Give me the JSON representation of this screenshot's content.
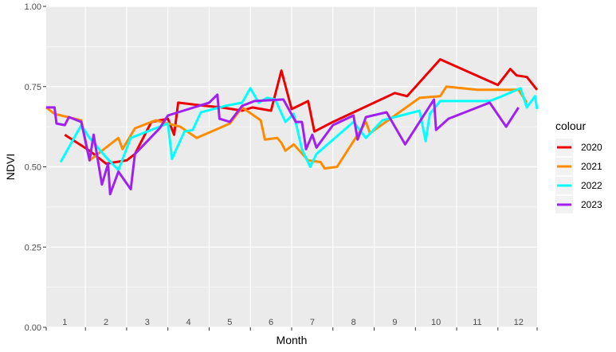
{
  "chart_data": {
    "type": "line",
    "title": "",
    "xlabel": "Month",
    "ylabel": "NDVI",
    "ylim": [
      0,
      1
    ],
    "xlim": [
      0.55,
      12.45
    ],
    "yticks": [
      0,
      0.25,
      0.5,
      0.75,
      1
    ],
    "ytick_labels": [
      "0.00",
      "0.25",
      "0.50",
      "0.75",
      "1.00"
    ],
    "month_labels": [
      "1",
      "2",
      "3",
      "4",
      "5",
      "6",
      "7",
      "8",
      "9",
      "10",
      "11",
      "12"
    ],
    "grid": true,
    "legend_position": "right",
    "legend_title": "colour",
    "series": [
      {
        "name": "2020",
        "color": "#ee0000",
        "points": [
          [
            1.0,
            0.6
          ],
          [
            1.6,
            0.55
          ],
          [
            2.0,
            0.51
          ],
          [
            2.5,
            0.52
          ],
          [
            2.7,
            0.54
          ],
          [
            3.1,
            0.64
          ],
          [
            3.5,
            0.65
          ],
          [
            3.65,
            0.6
          ],
          [
            3.75,
            0.7
          ],
          [
            4.4,
            0.69
          ],
          [
            4.8,
            0.685
          ],
          [
            5.3,
            0.675
          ],
          [
            5.55,
            0.685
          ],
          [
            6.0,
            0.675
          ],
          [
            6.25,
            0.8
          ],
          [
            6.5,
            0.68
          ],
          [
            6.9,
            0.705
          ],
          [
            7.05,
            0.61
          ],
          [
            7.5,
            0.64
          ],
          [
            9.0,
            0.73
          ],
          [
            9.3,
            0.72
          ],
          [
            10.1,
            0.835
          ],
          [
            11.5,
            0.755
          ],
          [
            11.8,
            0.805
          ],
          [
            11.95,
            0.785
          ],
          [
            12.2,
            0.78
          ],
          [
            12.45,
            0.74
          ]
        ]
      },
      {
        "name": "2021",
        "color": "#ff8c00",
        "points": [
          [
            0.55,
            0.685
          ],
          [
            0.75,
            0.665
          ],
          [
            1.4,
            0.645
          ],
          [
            1.6,
            0.52
          ],
          [
            2.3,
            0.59
          ],
          [
            2.4,
            0.555
          ],
          [
            2.7,
            0.62
          ],
          [
            3.2,
            0.645
          ],
          [
            3.8,
            0.625
          ],
          [
            4.2,
            0.59
          ],
          [
            5.0,
            0.635
          ],
          [
            5.3,
            0.685
          ],
          [
            5.75,
            0.645
          ],
          [
            5.85,
            0.585
          ],
          [
            6.15,
            0.59
          ],
          [
            6.25,
            0.575
          ],
          [
            6.35,
            0.55
          ],
          [
            6.55,
            0.57
          ],
          [
            6.9,
            0.52
          ],
          [
            7.2,
            0.515
          ],
          [
            7.3,
            0.495
          ],
          [
            7.6,
            0.5
          ],
          [
            8.3,
            0.64
          ],
          [
            8.4,
            0.605
          ],
          [
            9.6,
            0.715
          ],
          [
            10.1,
            0.72
          ],
          [
            10.25,
            0.75
          ],
          [
            11.0,
            0.74
          ],
          [
            11.6,
            0.74
          ],
          [
            12.0,
            0.74
          ],
          [
            12.2,
            0.7
          ]
        ]
      },
      {
        "name": "2022",
        "color": "#00ffff",
        "points": [
          [
            0.9,
            0.515
          ],
          [
            1.4,
            0.63
          ],
          [
            1.6,
            0.59
          ],
          [
            2.0,
            0.53
          ],
          [
            2.3,
            0.49
          ],
          [
            2.6,
            0.59
          ],
          [
            3.5,
            0.635
          ],
          [
            3.6,
            0.525
          ],
          [
            3.9,
            0.61
          ],
          [
            4.1,
            0.615
          ],
          [
            4.3,
            0.67
          ],
          [
            4.9,
            0.69
          ],
          [
            5.3,
            0.7
          ],
          [
            5.5,
            0.745
          ],
          [
            5.7,
            0.7
          ],
          [
            5.9,
            0.715
          ],
          [
            6.1,
            0.71
          ],
          [
            6.35,
            0.64
          ],
          [
            6.55,
            0.665
          ],
          [
            6.75,
            0.555
          ],
          [
            6.95,
            0.5
          ],
          [
            7.1,
            0.54
          ],
          [
            8.0,
            0.64
          ],
          [
            8.3,
            0.59
          ],
          [
            8.7,
            0.645
          ],
          [
            9.6,
            0.675
          ],
          [
            9.75,
            0.58
          ],
          [
            9.85,
            0.665
          ],
          [
            10.1,
            0.705
          ],
          [
            11.3,
            0.705
          ],
          [
            11.6,
            0.72
          ],
          [
            12.05,
            0.745
          ],
          [
            12.2,
            0.685
          ],
          [
            12.4,
            0.72
          ],
          [
            12.45,
            0.68
          ]
        ]
      },
      {
        "name": "2023",
        "color": "#a020f0",
        "points": [
          [
            0.55,
            0.685
          ],
          [
            0.75,
            0.685
          ],
          [
            0.8,
            0.635
          ],
          [
            1.0,
            0.63
          ],
          [
            1.1,
            0.655
          ],
          [
            1.4,
            0.64
          ],
          [
            1.6,
            0.52
          ],
          [
            1.7,
            0.6
          ],
          [
            1.9,
            0.445
          ],
          [
            2.05,
            0.51
          ],
          [
            2.1,
            0.415
          ],
          [
            2.3,
            0.485
          ],
          [
            2.6,
            0.43
          ],
          [
            2.7,
            0.54
          ],
          [
            3.3,
            0.62
          ],
          [
            3.5,
            0.66
          ],
          [
            4.0,
            0.68
          ],
          [
            4.5,
            0.7
          ],
          [
            4.7,
            0.725
          ],
          [
            4.75,
            0.65
          ],
          [
            5.0,
            0.64
          ],
          [
            5.3,
            0.69
          ],
          [
            5.6,
            0.705
          ],
          [
            6.3,
            0.71
          ],
          [
            6.6,
            0.64
          ],
          [
            6.75,
            0.64
          ],
          [
            6.85,
            0.555
          ],
          [
            7.0,
            0.6
          ],
          [
            7.1,
            0.56
          ],
          [
            7.5,
            0.63
          ],
          [
            8.0,
            0.66
          ],
          [
            8.1,
            0.585
          ],
          [
            8.3,
            0.655
          ],
          [
            8.8,
            0.67
          ],
          [
            9.25,
            0.57
          ],
          [
            9.95,
            0.71
          ],
          [
            10.0,
            0.615
          ],
          [
            10.3,
            0.65
          ],
          [
            11.3,
            0.7
          ],
          [
            11.7,
            0.625
          ],
          [
            12.0,
            0.685
          ]
        ]
      }
    ]
  }
}
